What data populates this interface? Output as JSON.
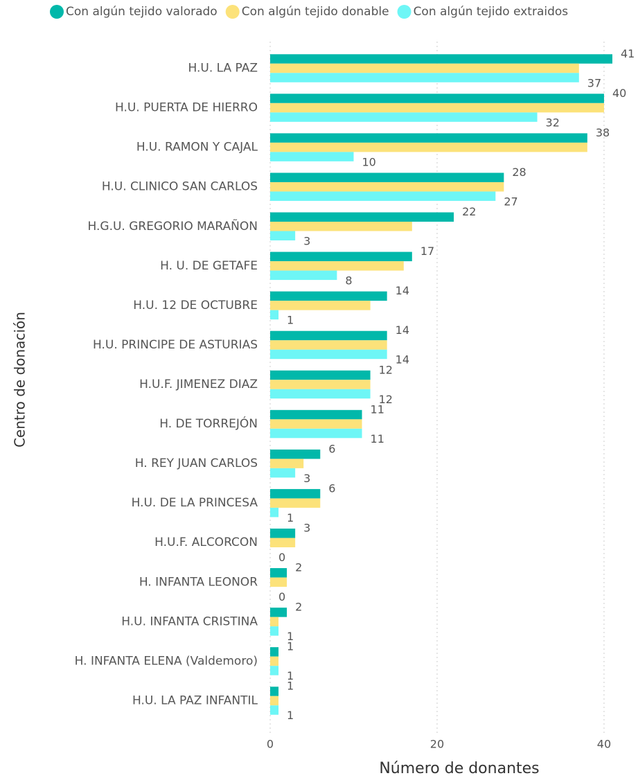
{
  "chart_data": {
    "type": "bar",
    "orientation": "horizontal",
    "x_label": "Número de donantes",
    "y_label": "Centro de donación",
    "categories": [
      "H.U. LA PAZ",
      "H.U. PUERTA DE HIERRO",
      "H.U. RAMON Y CAJAL",
      "H.U. CLINICO SAN CARLOS",
      "H.G.U. GREGORIO MARAÑON",
      "H. U. DE GETAFE",
      "H.U. 12 DE OCTUBRE",
      "H.U. PRINCIPE DE ASTURIAS",
      "H.U.F. JIMENEZ DIAZ",
      "H. DE TORREJÓN",
      "H. REY JUAN CARLOS",
      "H.U. DE LA PRINCESA",
      "H.U.F. ALCORCON",
      "H. INFANTA LEONOR",
      "H.U. INFANTA CRISTINA",
      "H. INFANTA ELENA (Valdemoro)",
      "H.U. LA PAZ INFANTIL"
    ],
    "series": [
      {
        "name": "Con algún tejido valorado",
        "color": "#01B8AA",
        "values": [
          41,
          40,
          38,
          28,
          22,
          17,
          14,
          14,
          12,
          11,
          6,
          6,
          3,
          2,
          2,
          1,
          1
        ]
      },
      {
        "name": "Con algún tejido donable",
        "color": "#FCE27A",
        "values": [
          37,
          40,
          38,
          28,
          17,
          16,
          12,
          14,
          12,
          11,
          4,
          6,
          3,
          2,
          1,
          1,
          1
        ]
      },
      {
        "name": "Con algún tejido extraidos",
        "color": "#6EF6F6",
        "values": [
          37,
          32,
          10,
          27,
          3,
          8,
          1,
          14,
          12,
          11,
          3,
          1,
          0,
          0,
          1,
          1,
          1
        ]
      }
    ],
    "xlim": [
      0,
      41
    ],
    "xticks": [
      0,
      20,
      40
    ],
    "grid": true,
    "legend": "top"
  }
}
